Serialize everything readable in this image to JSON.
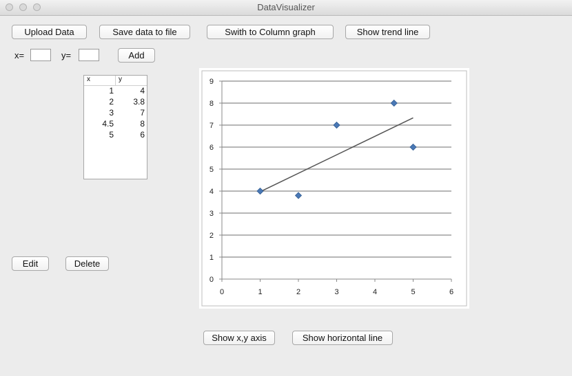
{
  "window": {
    "title": "DataVisualizer"
  },
  "buttons": {
    "upload": "Upload Data",
    "save": "Save data to file",
    "switch": "Swith to Column graph",
    "trend": "Show trend line",
    "add": "Add",
    "edit": "Edit",
    "delete": "Delete",
    "show_axis": "Show x,y axis",
    "show_hline": "Show horizontal line"
  },
  "inputs": {
    "x_label": "x=",
    "y_label": "y=",
    "x_value": "",
    "y_value": ""
  },
  "table": {
    "headers": [
      "x",
      "y"
    ],
    "rows": [
      [
        "1",
        "4"
      ],
      [
        "2",
        "3.8"
      ],
      [
        "3",
        "7"
      ],
      [
        "4.5",
        "8"
      ],
      [
        "5",
        "6"
      ]
    ]
  },
  "chart_data": {
    "type": "scatter",
    "x": [
      1,
      2,
      3,
      4.5,
      5
    ],
    "y": [
      4,
      3.8,
      7,
      8,
      6
    ],
    "xlim": [
      0,
      6
    ],
    "ylim": [
      0,
      9
    ],
    "xticks": [
      "0",
      "1",
      "2",
      "3",
      "4",
      "5",
      "6"
    ],
    "yticks": [
      "0",
      "1",
      "2",
      "3",
      "4",
      "5",
      "6",
      "7",
      "8",
      "9"
    ],
    "grid": true,
    "trend_line": {
      "x": [
        1,
        5
      ],
      "y": [
        3.97,
        7.33
      ]
    },
    "colors": {
      "marker": "#4a78b5",
      "grid": "#9d9d9d",
      "trend": "#555555"
    },
    "marker_shape": "diamond"
  }
}
